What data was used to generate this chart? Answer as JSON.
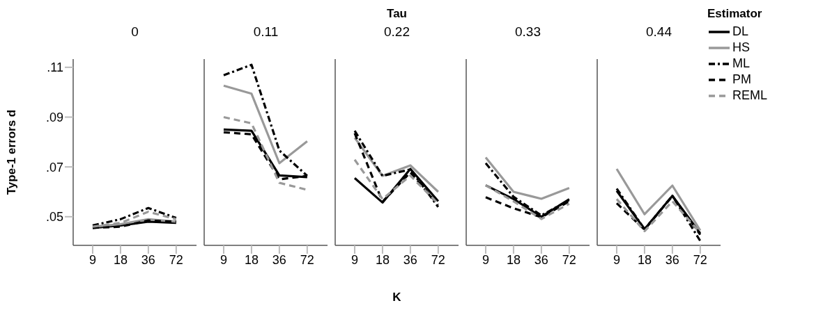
{
  "chart_data": [
    {
      "type": "line",
      "subtitle": "0",
      "ylabel": "Type-1 errors d",
      "categories": [
        "9",
        "18",
        "36",
        "72"
      ],
      "ylim": [
        0.0385,
        0.1133
      ],
      "yticks": [
        {
          "value": 0.05,
          "label": ".05"
        },
        {
          "value": 0.07,
          "label": ".07"
        },
        {
          "value": 0.09,
          "label": ".09"
        },
        {
          "value": 0.11,
          "label": ".11"
        }
      ],
      "grid": false,
      "legend": false,
      "marker": "none",
      "series": [
        {
          "color": "#000000",
          "line_style": "solid",
          "values": [
            0.0455,
            0.0465,
            0.048,
            0.0475
          ]
        },
        {
          "color": "#999999",
          "line_style": "solid",
          "values": [
            0.046,
            0.047,
            0.049,
            0.048
          ]
        },
        {
          "color": "#000000",
          "line_style": "dotted",
          "values": [
            0.0465,
            0.049,
            0.0535,
            0.0495
          ]
        },
        {
          "color": "#000000",
          "line_style": "dashed",
          "values": [
            0.0455,
            0.046,
            0.0485,
            0.048
          ]
        },
        {
          "color": "#999999",
          "line_style": "dashed",
          "values": [
            0.046,
            0.0475,
            0.052,
            0.049
          ]
        }
      ]
    },
    {
      "type": "line",
      "subtitle": "0.11",
      "categories": [
        "9",
        "18",
        "36",
        "72"
      ],
      "ylim": [
        0.0385,
        0.1133
      ],
      "tick_labels": "x",
      "grid": false,
      "legend": false,
      "marker": "none",
      "series": [
        {
          "color": "#000000",
          "line_style": "solid",
          "values": [
            0.085,
            0.0845,
            0.0666,
            0.0659
          ]
        },
        {
          "color": "#999999",
          "line_style": "solid",
          "values": [
            0.1026,
            0.0994,
            0.0715,
            0.0803
          ]
        },
        {
          "color": "#000000",
          "line_style": "dotted",
          "values": [
            0.1068,
            0.111,
            0.0766,
            0.0664
          ]
        },
        {
          "color": "#000000",
          "line_style": "dashed",
          "values": [
            0.0839,
            0.0831,
            0.065,
            0.0664
          ]
        },
        {
          "color": "#999999",
          "line_style": "dashed",
          "values": [
            0.09,
            0.0875,
            0.0636,
            0.0608
          ]
        }
      ]
    },
    {
      "type": "line",
      "title": "Tau",
      "subtitle": "0.22",
      "xlabel": "K",
      "categories": [
        "9",
        "18",
        "36",
        "72"
      ],
      "ylim": [
        0.0385,
        0.1133
      ],
      "tick_labels": "x",
      "grid": false,
      "legend": false,
      "marker": "none",
      "series": [
        {
          "color": "#000000",
          "line_style": "solid",
          "values": [
            0.0655,
            0.0557,
            0.0692,
            0.0562
          ]
        },
        {
          "color": "#999999",
          "line_style": "solid",
          "values": [
            0.0817,
            0.0664,
            0.0706,
            0.06
          ]
        },
        {
          "color": "#000000",
          "line_style": "dotted",
          "values": [
            0.0845,
            0.0664,
            0.069,
            0.0539
          ]
        },
        {
          "color": "#000000",
          "line_style": "dashed",
          "values": [
            0.0835,
            0.056,
            0.0678,
            0.0548
          ]
        },
        {
          "color": "#999999",
          "line_style": "dashed",
          "values": [
            0.0729,
            0.0571,
            0.0665,
            0.0552
          ]
        }
      ]
    },
    {
      "type": "line",
      "subtitle": "0.33",
      "categories": [
        "9",
        "18",
        "36",
        "72"
      ],
      "ylim": [
        0.0385,
        0.1133
      ],
      "tick_labels": "x",
      "grid": false,
      "legend": false,
      "marker": "none",
      "series": [
        {
          "color": "#000000",
          "line_style": "solid",
          "values": [
            0.0626,
            0.0571,
            0.05,
            0.057
          ]
        },
        {
          "color": "#999999",
          "line_style": "solid",
          "values": [
            0.0738,
            0.06,
            0.0572,
            0.0615
          ]
        },
        {
          "color": "#000000",
          "line_style": "dotted",
          "values": [
            0.0715,
            0.058,
            0.0505,
            0.0567
          ]
        },
        {
          "color": "#000000",
          "line_style": "dashed",
          "values": [
            0.0578,
            0.0534,
            0.0498,
            0.0562
          ]
        },
        {
          "color": "#999999",
          "line_style": "dashed",
          "values": [
            0.0626,
            0.0562,
            0.0491,
            0.0552
          ]
        }
      ]
    },
    {
      "type": "line",
      "subtitle": "0.44",
      "legend_title": "Estimator",
      "categories": [
        "9",
        "18",
        "36",
        "72"
      ],
      "ylim": [
        0.0385,
        0.1133
      ],
      "tick_labels": "x",
      "grid": false,
      "legend": "right",
      "marker": "none",
      "series": [
        {
          "name": "DL",
          "color": "#000000",
          "line_style": "solid",
          "values": [
            0.0604,
            0.045,
            0.0584,
            0.0433
          ]
        },
        {
          "name": "HS",
          "color": "#999999",
          "line_style": "solid",
          "values": [
            0.0692,
            0.051,
            0.0625,
            0.0445
          ]
        },
        {
          "name": "ML",
          "color": "#000000",
          "line_style": "dotted",
          "values": [
            0.0613,
            0.045,
            0.0584,
            0.0403
          ]
        },
        {
          "name": "PM",
          "color": "#000000",
          "line_style": "dashed",
          "values": [
            0.0554,
            0.0448,
            0.0583,
            0.0428
          ]
        },
        {
          "name": "REML",
          "color": "#999999",
          "line_style": "dashed",
          "values": [
            0.0571,
            0.0442,
            0.0562,
            0.0436
          ]
        }
      ]
    }
  ]
}
